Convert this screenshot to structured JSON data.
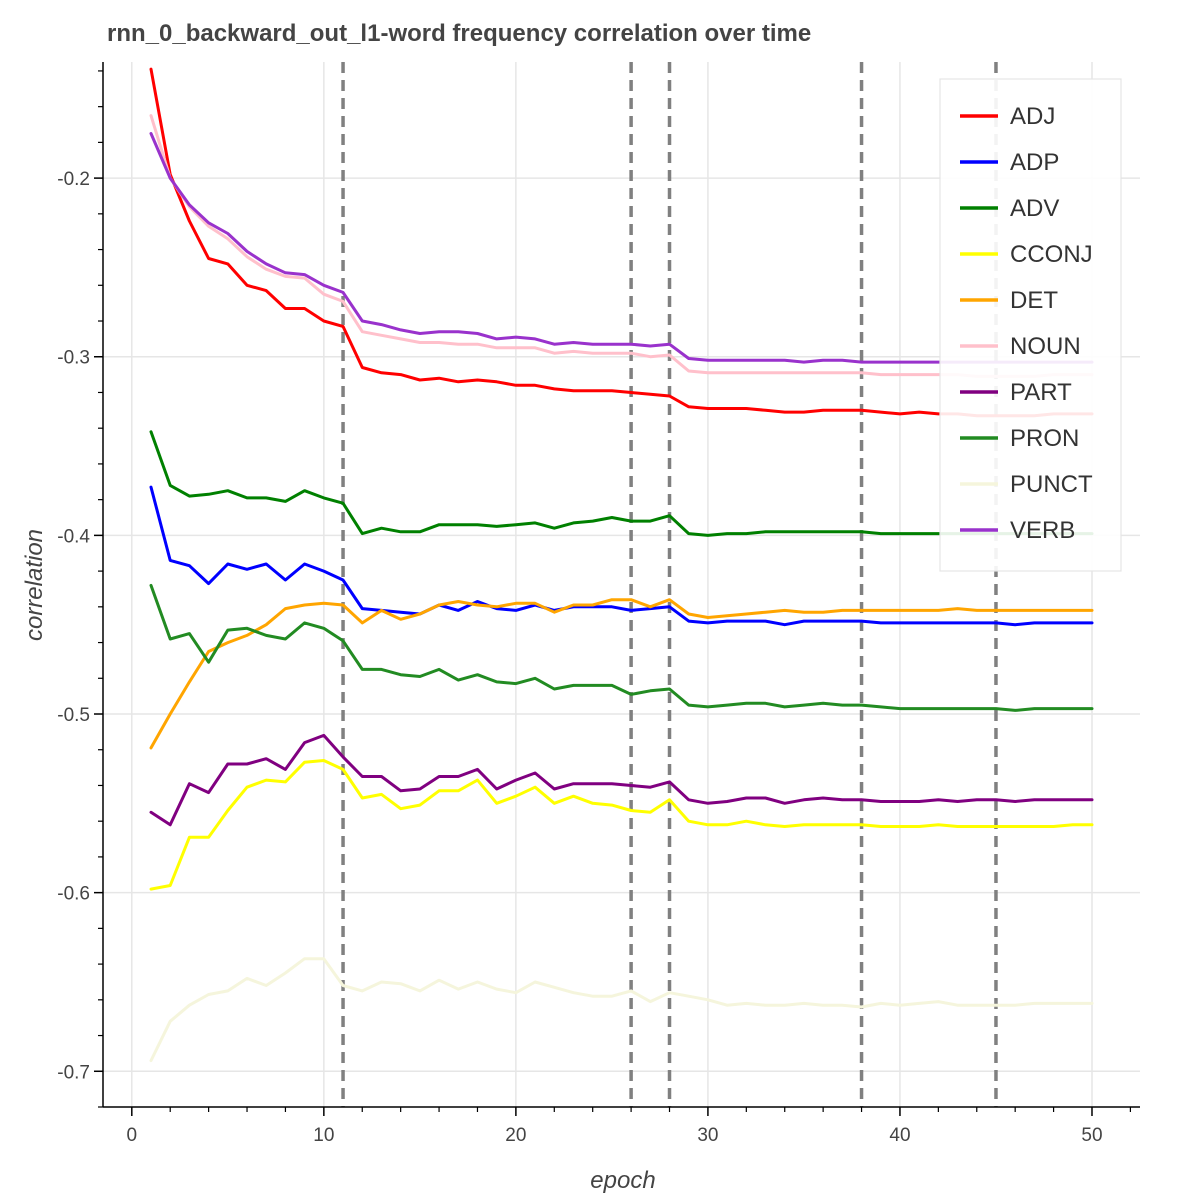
{
  "chart_data": {
    "type": "line",
    "title": "rnn_0_backward_out_l1-word frequency correlation over time",
    "xlabel": "epoch",
    "ylabel": "correlation",
    "xlim": [
      -1.5,
      52.5
    ],
    "ylim": [
      -0.72,
      -0.135
    ],
    "x_ticks": [
      0,
      10,
      20,
      30,
      40,
      50
    ],
    "x_tick_labels": [
      "0",
      "10",
      "20",
      "30",
      "40",
      "50"
    ],
    "y_ticks": [
      -0.7,
      -0.6,
      -0.5,
      -0.4,
      -0.3,
      -0.2
    ],
    "y_tick_labels": [
      "-0.7",
      "-0.6",
      "-0.5",
      "-0.4",
      "-0.3",
      "-0.2"
    ],
    "grid": true,
    "legend_position": "top-right",
    "vertical_markers": [
      11,
      26,
      28,
      38,
      45
    ],
    "marker_color": "#808080",
    "x": [
      1,
      2,
      3,
      4,
      5,
      6,
      7,
      8,
      9,
      10,
      11,
      12,
      13,
      14,
      15,
      16,
      17,
      18,
      19,
      20,
      21,
      22,
      23,
      24,
      25,
      26,
      27,
      28,
      29,
      30,
      31,
      32,
      33,
      34,
      35,
      36,
      37,
      38,
      39,
      40,
      41,
      42,
      43,
      44,
      45,
      46,
      47,
      48,
      49,
      50
    ],
    "series": [
      {
        "name": "ADJ",
        "color": "#ff0000",
        "values": [
          -0.139,
          -0.198,
          -0.224,
          -0.245,
          -0.248,
          -0.26,
          -0.263,
          -0.273,
          -0.273,
          -0.28,
          -0.283,
          -0.306,
          -0.309,
          -0.31,
          -0.313,
          -0.312,
          -0.314,
          -0.313,
          -0.314,
          -0.316,
          -0.316,
          -0.318,
          -0.319,
          -0.319,
          -0.319,
          -0.32,
          -0.321,
          -0.322,
          -0.328,
          -0.329,
          -0.329,
          -0.329,
          -0.33,
          -0.331,
          -0.331,
          -0.33,
          -0.33,
          -0.33,
          -0.331,
          -0.332,
          -0.331,
          -0.332,
          -0.332,
          -0.333,
          -0.333,
          -0.333,
          -0.333,
          -0.332,
          -0.332,
          -0.332
        ]
      },
      {
        "name": "ADP",
        "color": "#0000ff",
        "values": [
          -0.373,
          -0.414,
          -0.417,
          -0.427,
          -0.416,
          -0.419,
          -0.416,
          -0.425,
          -0.416,
          -0.42,
          -0.425,
          -0.441,
          -0.442,
          -0.443,
          -0.444,
          -0.439,
          -0.442,
          -0.437,
          -0.441,
          -0.442,
          -0.439,
          -0.442,
          -0.44,
          -0.44,
          -0.44,
          -0.442,
          -0.441,
          -0.44,
          -0.448,
          -0.449,
          -0.448,
          -0.448,
          -0.448,
          -0.45,
          -0.448,
          -0.448,
          -0.448,
          -0.448,
          -0.449,
          -0.449,
          -0.449,
          -0.449,
          -0.449,
          -0.449,
          -0.449,
          -0.45,
          -0.449,
          -0.449,
          -0.449,
          -0.449
        ]
      },
      {
        "name": "ADV",
        "color": "#008000",
        "values": [
          -0.342,
          -0.372,
          -0.378,
          -0.377,
          -0.375,
          -0.379,
          -0.379,
          -0.381,
          -0.375,
          -0.379,
          -0.382,
          -0.399,
          -0.396,
          -0.398,
          -0.398,
          -0.394,
          -0.394,
          -0.394,
          -0.395,
          -0.394,
          -0.393,
          -0.396,
          -0.393,
          -0.392,
          -0.39,
          -0.392,
          -0.392,
          -0.389,
          -0.399,
          -0.4,
          -0.399,
          -0.399,
          -0.398,
          -0.398,
          -0.398,
          -0.398,
          -0.398,
          -0.398,
          -0.399,
          -0.399,
          -0.399,
          -0.399,
          -0.399,
          -0.399,
          -0.399,
          -0.399,
          -0.399,
          -0.399,
          -0.399,
          -0.399
        ]
      },
      {
        "name": "CCONJ",
        "color": "#ffff00",
        "values": [
          -0.598,
          -0.596,
          -0.569,
          -0.569,
          -0.554,
          -0.541,
          -0.537,
          -0.538,
          -0.527,
          -0.526,
          -0.531,
          -0.547,
          -0.545,
          -0.553,
          -0.551,
          -0.543,
          -0.543,
          -0.537,
          -0.55,
          -0.546,
          -0.541,
          -0.55,
          -0.546,
          -0.55,
          -0.551,
          -0.554,
          -0.555,
          -0.548,
          -0.56,
          -0.562,
          -0.562,
          -0.56,
          -0.562,
          -0.563,
          -0.562,
          -0.562,
          -0.562,
          -0.562,
          -0.563,
          -0.563,
          -0.563,
          -0.562,
          -0.563,
          -0.563,
          -0.563,
          -0.563,
          -0.563,
          -0.563,
          -0.562,
          -0.562
        ]
      },
      {
        "name": "DET",
        "color": "#ffa500",
        "values": [
          -0.519,
          -0.5,
          -0.482,
          -0.465,
          -0.46,
          -0.456,
          -0.45,
          -0.441,
          -0.439,
          -0.438,
          -0.439,
          -0.449,
          -0.442,
          -0.447,
          -0.444,
          -0.439,
          -0.437,
          -0.439,
          -0.44,
          -0.438,
          -0.438,
          -0.443,
          -0.439,
          -0.439,
          -0.436,
          -0.436,
          -0.44,
          -0.436,
          -0.444,
          -0.446,
          -0.445,
          -0.444,
          -0.443,
          -0.442,
          -0.443,
          -0.443,
          -0.442,
          -0.442,
          -0.442,
          -0.442,
          -0.442,
          -0.442,
          -0.441,
          -0.442,
          -0.442,
          -0.442,
          -0.442,
          -0.442,
          -0.442,
          -0.442
        ]
      },
      {
        "name": "NOUN",
        "color": "#ffc0cb",
        "values": [
          -0.165,
          -0.2,
          -0.216,
          -0.227,
          -0.234,
          -0.244,
          -0.251,
          -0.255,
          -0.256,
          -0.265,
          -0.269,
          -0.286,
          -0.288,
          -0.29,
          -0.292,
          -0.292,
          -0.293,
          -0.293,
          -0.295,
          -0.295,
          -0.295,
          -0.298,
          -0.297,
          -0.298,
          -0.298,
          -0.298,
          -0.3,
          -0.299,
          -0.308,
          -0.309,
          -0.309,
          -0.309,
          -0.309,
          -0.309,
          -0.309,
          -0.309,
          -0.309,
          -0.309,
          -0.31,
          -0.31,
          -0.31,
          -0.31,
          -0.31,
          -0.311,
          -0.311,
          -0.311,
          -0.311,
          -0.31,
          -0.31,
          -0.31
        ]
      },
      {
        "name": "PART",
        "color": "#800080",
        "values": [
          -0.555,
          -0.562,
          -0.539,
          -0.544,
          -0.528,
          -0.528,
          -0.525,
          -0.531,
          -0.516,
          -0.512,
          -0.524,
          -0.535,
          -0.535,
          -0.543,
          -0.542,
          -0.535,
          -0.535,
          -0.531,
          -0.542,
          -0.537,
          -0.533,
          -0.542,
          -0.539,
          -0.539,
          -0.539,
          -0.54,
          -0.541,
          -0.538,
          -0.548,
          -0.55,
          -0.549,
          -0.547,
          -0.547,
          -0.55,
          -0.548,
          -0.547,
          -0.548,
          -0.548,
          -0.549,
          -0.549,
          -0.549,
          -0.548,
          -0.549,
          -0.548,
          -0.548,
          -0.549,
          -0.548,
          -0.548,
          -0.548,
          -0.548
        ]
      },
      {
        "name": "PRON",
        "color": "#228b22",
        "values": [
          -0.428,
          -0.458,
          -0.455,
          -0.471,
          -0.453,
          -0.452,
          -0.456,
          -0.458,
          -0.449,
          -0.452,
          -0.459,
          -0.475,
          -0.475,
          -0.478,
          -0.479,
          -0.475,
          -0.481,
          -0.478,
          -0.482,
          -0.483,
          -0.48,
          -0.486,
          -0.484,
          -0.484,
          -0.484,
          -0.489,
          -0.487,
          -0.486,
          -0.495,
          -0.496,
          -0.495,
          -0.494,
          -0.494,
          -0.496,
          -0.495,
          -0.494,
          -0.495,
          -0.495,
          -0.496,
          -0.497,
          -0.497,
          -0.497,
          -0.497,
          -0.497,
          -0.497,
          -0.498,
          -0.497,
          -0.497,
          -0.497,
          -0.497
        ]
      },
      {
        "name": "PUNCT",
        "color": "#f5f5dc",
        "values": [
          -0.694,
          -0.672,
          -0.663,
          -0.657,
          -0.655,
          -0.648,
          -0.652,
          -0.645,
          -0.637,
          -0.637,
          -0.652,
          -0.655,
          -0.65,
          -0.651,
          -0.655,
          -0.649,
          -0.654,
          -0.65,
          -0.654,
          -0.656,
          -0.65,
          -0.653,
          -0.656,
          -0.658,
          -0.658,
          -0.655,
          -0.661,
          -0.656,
          -0.658,
          -0.66,
          -0.663,
          -0.662,
          -0.663,
          -0.663,
          -0.662,
          -0.663,
          -0.663,
          -0.664,
          -0.662,
          -0.663,
          -0.662,
          -0.661,
          -0.663,
          -0.663,
          -0.663,
          -0.663,
          -0.662,
          -0.662,
          -0.662,
          -0.662
        ]
      },
      {
        "name": "VERB",
        "color": "#9932cc",
        "values": [
          -0.175,
          -0.2,
          -0.215,
          -0.225,
          -0.231,
          -0.241,
          -0.248,
          -0.253,
          -0.254,
          -0.26,
          -0.264,
          -0.28,
          -0.282,
          -0.285,
          -0.287,
          -0.286,
          -0.286,
          -0.287,
          -0.29,
          -0.289,
          -0.29,
          -0.293,
          -0.292,
          -0.293,
          -0.293,
          -0.293,
          -0.294,
          -0.293,
          -0.301,
          -0.302,
          -0.302,
          -0.302,
          -0.302,
          -0.302,
          -0.303,
          -0.302,
          -0.302,
          -0.303,
          -0.303,
          -0.303,
          -0.303,
          -0.303,
          -0.303,
          -0.303,
          -0.303,
          -0.303,
          -0.303,
          -0.303,
          -0.303,
          -0.303
        ]
      }
    ]
  }
}
